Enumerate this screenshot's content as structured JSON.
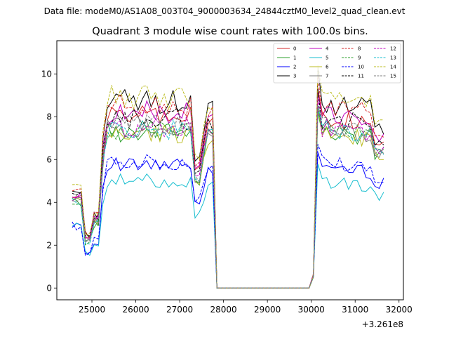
{
  "chart_data": {
    "type": "line",
    "suptitle": "Data file: modeM0/AS1A08_003T04_9000003634_24844cztM0_level2_quad_clean.evt",
    "title": "Quadrant 3 module wise count rates with 100.0s bins.",
    "xlabel": "",
    "ylabel": "",
    "x_offset_label": "+3.261e8",
    "xlim": [
      24200,
      32100
    ],
    "ylim": [
      -0.55,
      11.55
    ],
    "x_ticks": [
      25000,
      26000,
      27000,
      28000,
      29000,
      30000,
      31000,
      32000
    ],
    "x_tick_labels": [
      "25000",
      "26000",
      "27000",
      "28000",
      "29000",
      "30000",
      "31000",
      "32000"
    ],
    "y_ticks": [
      0,
      2,
      4,
      6,
      8,
      10
    ],
    "y_tick_labels": [
      "0",
      "2",
      "4",
      "6",
      "8",
      "10"
    ],
    "grid": false,
    "legend_position": "top-right",
    "segments": [
      {
        "t_start": 24550,
        "t_end": 25250,
        "group": "early"
      },
      {
        "t_start": 25250,
        "t_end": 27350,
        "group": "main"
      },
      {
        "t_start": 27350,
        "t_end": 27850,
        "group": "dip"
      },
      {
        "t_start": 27850,
        "t_end": 27950,
        "group": "fall"
      },
      {
        "t_start": 28000,
        "t_end": 29950,
        "group": "zero"
      },
      {
        "t_start": 30050,
        "t_end": 31650,
        "group": "late"
      }
    ],
    "series": [
      {
        "name": "0",
        "color": "#d62728",
        "dash": "solid",
        "level": 8.0,
        "early": 4.4
      },
      {
        "name": "1",
        "color": "#2ca02c",
        "dash": "solid",
        "level": 7.3,
        "early": 4.0
      },
      {
        "name": "2",
        "color": "#0000ff",
        "dash": "solid",
        "level": 5.7,
        "early": 3.0
      },
      {
        "name": "3",
        "color": "#000000",
        "dash": "solid",
        "level": 8.7,
        "early": 4.5
      },
      {
        "name": "4",
        "color": "#bf00bf",
        "dash": "solid",
        "level": 8.2,
        "early": 4.3
      },
      {
        "name": "5",
        "color": "#17becf",
        "dash": "solid",
        "level": 5.0,
        "early": 2.9
      },
      {
        "name": "6",
        "color": "#bcbd22",
        "dash": "solid",
        "level": 7.2,
        "early": 4.1
      },
      {
        "name": "7",
        "color": "#7f7f7f",
        "dash": "solid",
        "level": 7.5,
        "early": 4.2
      },
      {
        "name": "8",
        "color": "#d62728",
        "dash": "dashed",
        "level": 8.5,
        "early": 4.6
      },
      {
        "name": "9",
        "color": "#2ca02c",
        "dash": "dashed",
        "level": 7.4,
        "early": 3.9
      },
      {
        "name": "10",
        "color": "#0000ff",
        "dash": "dashed",
        "level": 5.9,
        "early": 2.9
      },
      {
        "name": "11",
        "color": "#000000",
        "dash": "dashed",
        "level": 7.9,
        "early": 4.3
      },
      {
        "name": "12",
        "color": "#bf00bf",
        "dash": "dashed",
        "level": 7.5,
        "early": 4.2
      },
      {
        "name": "13",
        "color": "#17becf",
        "dash": "dashed",
        "level": 7.4,
        "early": 4.0
      },
      {
        "name": "14",
        "color": "#bcbd22",
        "dash": "dashed",
        "level": 8.9,
        "early": 4.7
      },
      {
        "name": "15",
        "color": "#7f7f7f",
        "dash": "dashed",
        "level": 7.6,
        "early": 4.1
      }
    ]
  }
}
